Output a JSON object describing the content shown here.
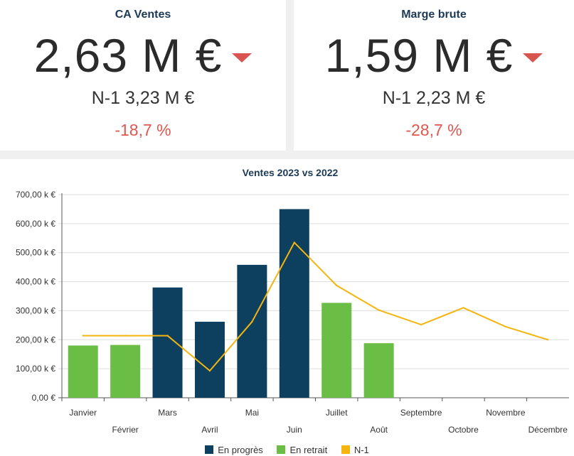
{
  "kpis": [
    {
      "title": "CA Ventes",
      "value": "2,63 M €",
      "previous": "N-1 3,23 M €",
      "delta": "-18,7 %",
      "trend_icon": "triangle-down-icon"
    },
    {
      "title": "Marge brute",
      "value": "1,59 M €",
      "previous": "N-1 2,23 M €",
      "delta": "-28,7 %",
      "trend_icon": "triangle-down-icon"
    }
  ],
  "colors": {
    "en_progres": "#0d3f5e",
    "en_retrait": "#6abd45",
    "n1": "#f5b50f",
    "negative": "#e0574f",
    "title": "#1c3a56"
  },
  "legend": [
    {
      "label": "En progrès",
      "color": "#0d3f5e"
    },
    {
      "label": "En retrait",
      "color": "#6abd45"
    },
    {
      "label": "N-1",
      "color": "#f5b50f"
    }
  ],
  "chart_data": {
    "type": "bar",
    "title": "Ventes 2023 vs 2022",
    "xlabel": "",
    "ylabel": "",
    "ylim": [
      0,
      700000
    ],
    "yticks": [
      0,
      100000,
      200000,
      300000,
      400000,
      500000,
      600000,
      700000
    ],
    "ytick_labels": [
      "0,00 €",
      "100,00 k €",
      "200,00 k €",
      "300,00 k €",
      "400,00 k €",
      "500,00 k €",
      "600,00 k €",
      "700,00 k €"
    ],
    "categories": [
      "Janvier",
      "Février",
      "Mars",
      "Avril",
      "Mai",
      "Juin",
      "Juillet",
      "Août",
      "Septembre",
      "Octobre",
      "Novembre",
      "Décembre"
    ],
    "series": [
      {
        "name": "En progrès",
        "kind": "bar",
        "values": [
          null,
          null,
          380000,
          262000,
          458000,
          650000,
          null,
          null,
          null,
          null,
          null,
          null
        ]
      },
      {
        "name": "En retrait",
        "kind": "bar",
        "values": [
          180000,
          182000,
          null,
          null,
          null,
          null,
          327000,
          188000,
          null,
          null,
          null,
          null
        ]
      },
      {
        "name": "N-1",
        "kind": "line",
        "values": [
          214000,
          214000,
          214000,
          93000,
          262000,
          535000,
          387000,
          302000,
          252000,
          310000,
          245000,
          200000
        ]
      }
    ],
    "grid": true,
    "legend_position": "bottom"
  }
}
